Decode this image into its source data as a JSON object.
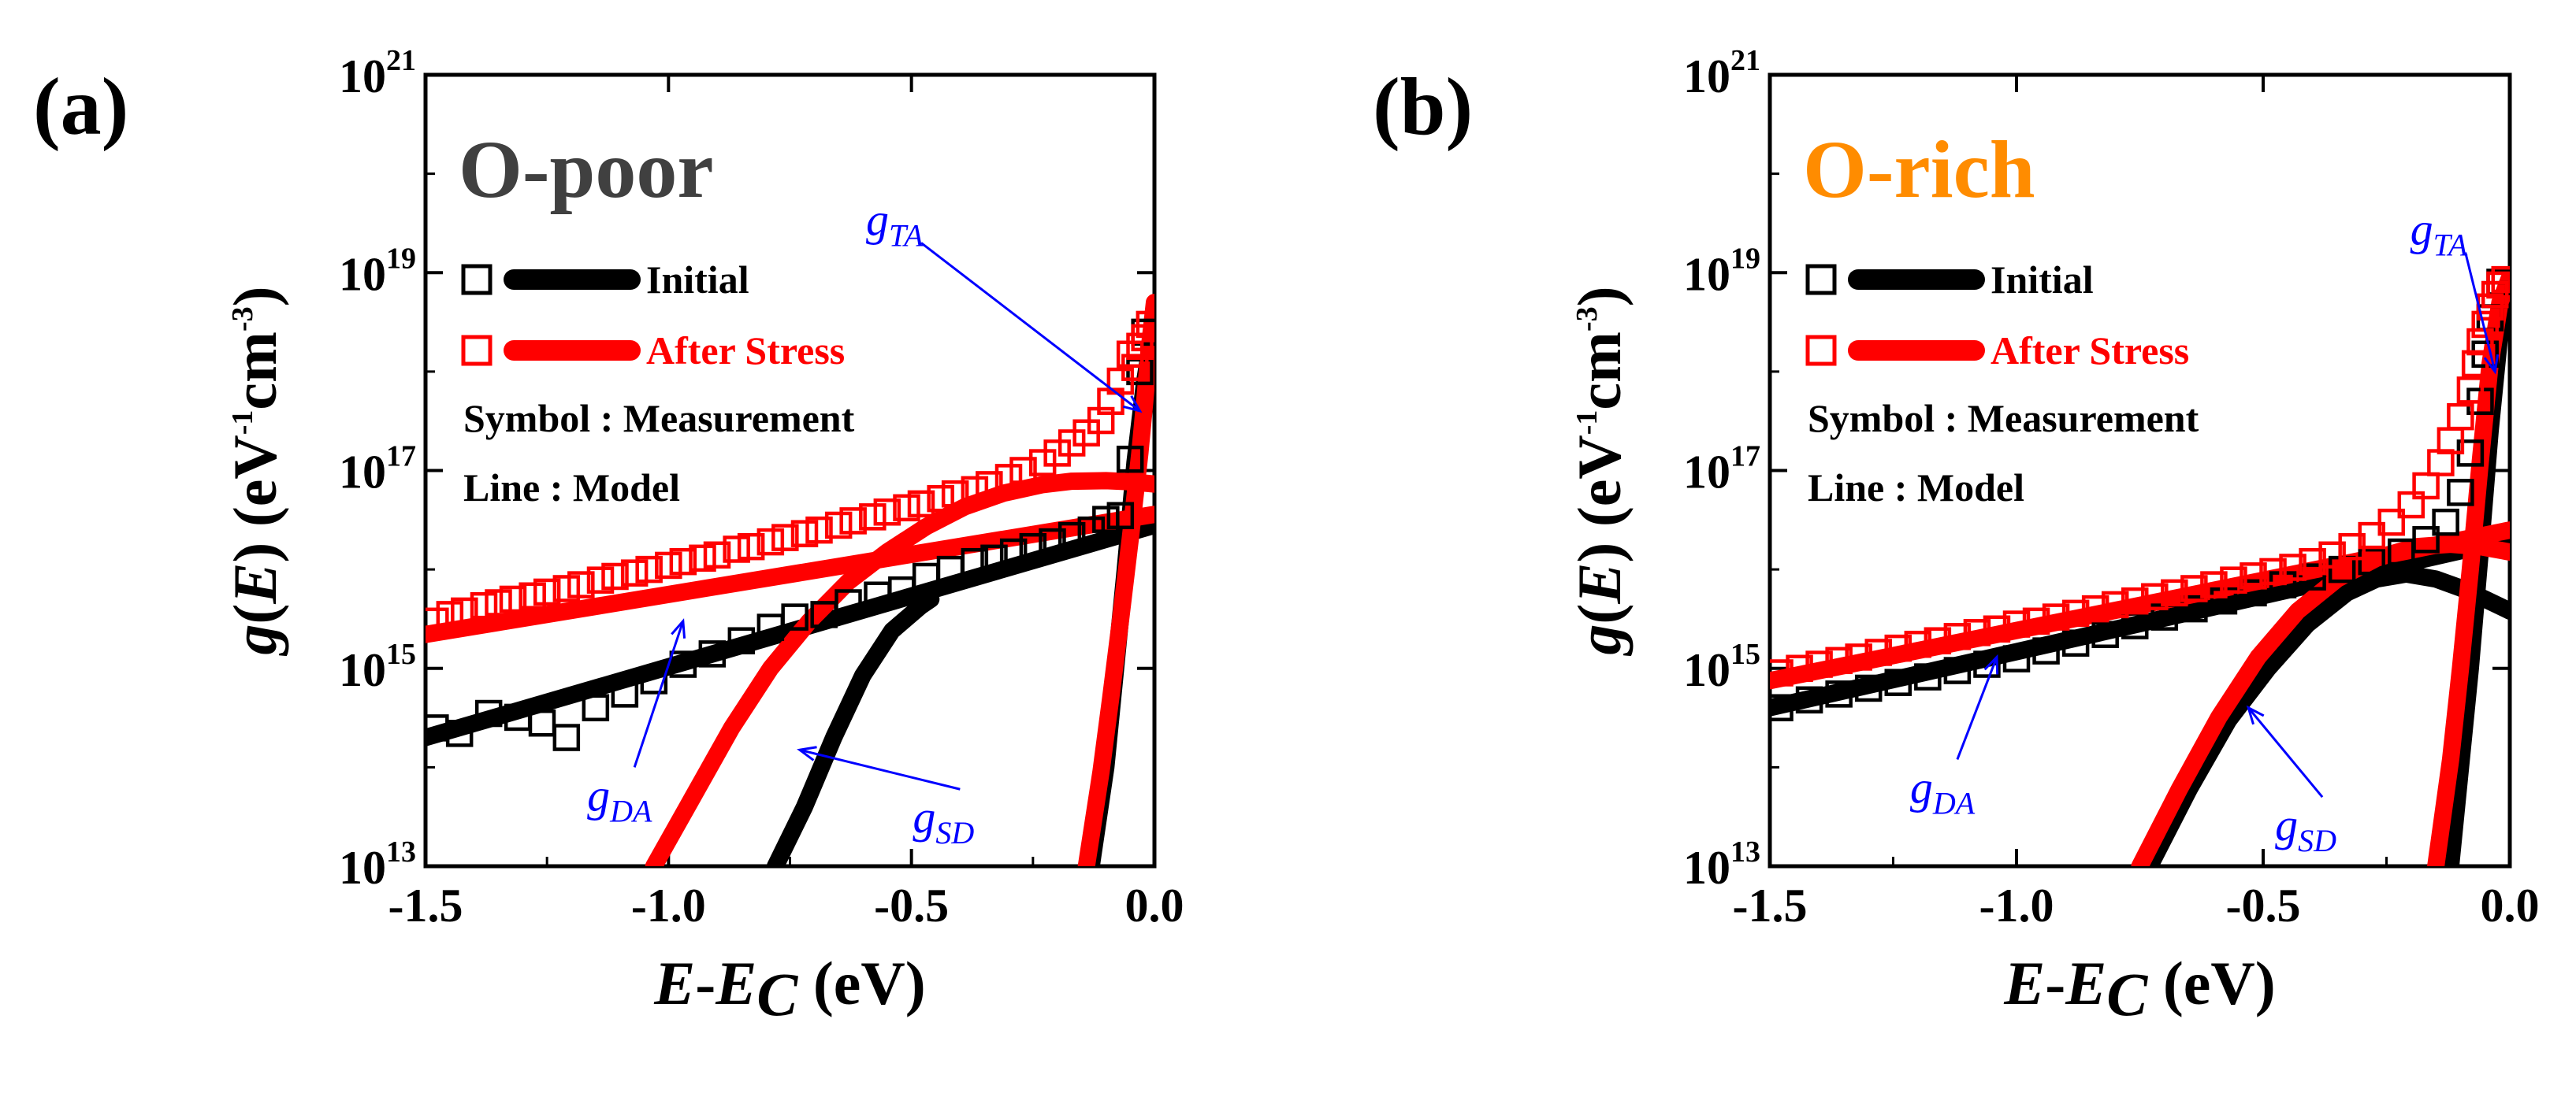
{
  "chart_data": [
    {
      "panel_label": "(a)",
      "sample_label": "O-poor",
      "sample_color": "#404040",
      "type": "scatter",
      "xlabel": "E-E_C (eV)",
      "ylabel": "g(E) (eV^-1cm^-3)",
      "xlim": [
        -1.5,
        0.0
      ],
      "ylim": [
        10000000000000.0,
        1e+21
      ],
      "yscale": "log",
      "x_ticks": [
        "-1.5",
        "-1.0",
        "-0.5",
        "0.0"
      ],
      "y_ticks": [
        "10^13",
        "10^15",
        "10^17",
        "10^19",
        "10^21"
      ],
      "legend": {
        "placement": "upper-left",
        "entries": [
          {
            "label": "Initial",
            "color": "#000000"
          },
          {
            "label": "After Stress",
            "color": "#ff0000"
          }
        ]
      },
      "notes": [
        "Symbol : Measurement",
        "Line : Model"
      ],
      "annotations": [
        {
          "base": "g",
          "sub": "TA",
          "from": [
            -0.48,
            2e+19
          ],
          "to": [
            -0.03,
            4e+17
          ]
        },
        {
          "base": "g",
          "sub": "DA",
          "from": [
            -1.07,
            100000000000000.0
          ],
          "to": [
            -0.97,
            3000000000000000.0
          ]
        },
        {
          "base": "g",
          "sub": "SD",
          "from": [
            -0.4,
            60000000000000.0
          ],
          "to": [
            -0.73,
            150000000000000.0
          ]
        }
      ],
      "series": [
        {
          "name": "Initial",
          "kind": "measurement",
          "color": "#000000",
          "x": [
            -1.48,
            -1.43,
            -1.37,
            -1.31,
            -1.26,
            -1.21,
            -1.15,
            -1.09,
            -1.03,
            -0.97,
            -0.91,
            -0.85,
            -0.79,
            -0.74,
            -0.68,
            -0.63,
            -0.57,
            -0.52,
            -0.47,
            -0.42,
            -0.37,
            -0.33,
            -0.29,
            -0.25,
            -0.21,
            -0.17,
            -0.13,
            -0.1,
            -0.07,
            -0.05,
            -0.03,
            -0.02
          ],
          "y": [
            250000000000000.0,
            220000000000000.0,
            350000000000000.0,
            320000000000000.0,
            280000000000000.0,
            200000000000000.0,
            400000000000000.0,
            550000000000000.0,
            750000000000000.0,
            1100000000000000.0,
            1400000000000000.0,
            1900000000000000.0,
            2600000000000000.0,
            3300000000000000.0,
            3500000000000000.0,
            4600000000000000.0,
            5500000000000000.0,
            6200000000000000.0,
            8500000000000000.0,
            1e+16,
            1.2e+16,
            1.3e+16,
            1.5e+16,
            1.7e+16,
            1.9e+16,
            2.2e+16,
            2.5e+16,
            3.2e+16,
            3.5e+16,
            1.3e+17,
            1e+18,
            2.5e+18
          ]
        },
        {
          "name": "After Stress",
          "kind": "measurement",
          "color": "#ff0000",
          "x": [
            -1.48,
            -1.45,
            -1.42,
            -1.38,
            -1.35,
            -1.32,
            -1.28,
            -1.25,
            -1.21,
            -1.18,
            -1.14,
            -1.11,
            -1.07,
            -1.04,
            -1.0,
            -0.97,
            -0.93,
            -0.9,
            -0.86,
            -0.83,
            -0.79,
            -0.76,
            -0.72,
            -0.69,
            -0.65,
            -0.62,
            -0.58,
            -0.55,
            -0.51,
            -0.48,
            -0.44,
            -0.41,
            -0.37,
            -0.34,
            -0.3,
            -0.27,
            -0.23,
            -0.2,
            -0.17,
            -0.14,
            -0.11,
            -0.09,
            -0.07,
            -0.05,
            -0.04,
            -0.03,
            -0.02,
            -0.01
          ],
          "y": [
            3000000000000000.0,
            3500000000000000.0,
            3800000000000000.0,
            4300000000000000.0,
            4600000000000000.0,
            5000000000000000.0,
            5400000000000000.0,
            5900000000000000.0,
            6400000000000000.0,
            7000000000000000.0,
            7800000000000000.0,
            8500000000000000.0,
            9200000000000000.0,
            1e+16,
            1.1e+16,
            1.2e+16,
            1.3e+16,
            1.4e+16,
            1.6e+16,
            1.7e+16,
            1.9e+16,
            2.1e+16,
            2.3e+16,
            2.5e+16,
            2.8e+16,
            3.1e+16,
            3.4e+16,
            3.8e+16,
            4.2e+16,
            4.6e+16,
            5.2e+16,
            5.8e+16,
            6.4e+16,
            7.2e+16,
            8.5e+16,
            1e+17,
            1.2e+17,
            1.5e+17,
            1.9e+17,
            2.4e+17,
            3.2e+17,
            5e+17,
            8e+17,
            1.5e+18,
            1.1e+18,
            1.8e+18,
            2.2e+18,
            3e+18
          ]
        },
        {
          "name": "Initial g_DA model",
          "kind": "model",
          "color": "#000000",
          "x": [
            -1.5,
            -0.0
          ],
          "y": [
            200000000000000.0,
            2.8e+16
          ]
        },
        {
          "name": "Initial g_SD model",
          "kind": "model",
          "color": "#000000",
          "x": [
            -0.78,
            -0.72,
            -0.66,
            -0.6,
            -0.54,
            -0.48,
            -0.46
          ],
          "y": [
            10000000000000.0,
            40000000000000.0,
            200000000000000.0,
            850000000000000.0,
            2400000000000000.0,
            4300000000000000.0,
            5000000000000000.0
          ]
        },
        {
          "name": "Initial g_TA model",
          "kind": "model",
          "color": "#000000",
          "x": [
            -0.13,
            -0.1,
            -0.08,
            -0.06,
            -0.04,
            -0.02,
            -0.01,
            0.0
          ],
          "y": [
            10000000000000.0,
            100000000000000.0,
            1000000000000000.0,
            1e+16,
            1.2e+17,
            8e+17,
            1.6e+18,
            2.2e+18
          ]
        },
        {
          "name": "After Stress g_DA model",
          "kind": "model",
          "color": "#ff0000",
          "x": [
            -1.5,
            -0.0
          ],
          "y": [
            2200000000000000.0,
            3.6e+16
          ]
        },
        {
          "name": "After Stress g_SD model",
          "kind": "model",
          "color": "#ff0000",
          "x": [
            -1.03,
            -0.95,
            -0.87,
            -0.79,
            -0.71,
            -0.63,
            -0.55,
            -0.47,
            -0.39,
            -0.31,
            -0.23,
            -0.17,
            -0.1,
            -0.05,
            0.0
          ],
          "y": [
            10000000000000.0,
            50000000000000.0,
            250000000000000.0,
            1000000000000000.0,
            3000000000000000.0,
            7500000000000000.0,
            1.5e+16,
            2.7e+16,
            4.3e+16,
            5.9e+16,
            7.2e+16,
            7.8e+16,
            7.9e+16,
            7.7e+16,
            7.3e+16
          ]
        },
        {
          "name": "After Stress g_TA model",
          "kind": "model",
          "color": "#ff0000",
          "x": [
            -0.14,
            -0.11,
            -0.09,
            -0.07,
            -0.05,
            -0.03,
            -0.02,
            -0.01,
            0.0
          ],
          "y": [
            10000000000000.0,
            90000000000000.0,
            500000000000000.0,
            3000000000000000.0,
            2e+16,
            1.5e+17,
            5e+17,
            1.8e+18,
            5e+18
          ]
        }
      ]
    },
    {
      "panel_label": "(b)",
      "sample_label": "O-rich",
      "sample_color": "#ff8c00",
      "type": "scatter",
      "xlabel": "E-E_C (eV)",
      "ylabel": "g(E) (eV^-1cm^-3)",
      "xlim": [
        -1.5,
        0.0
      ],
      "ylim": [
        10000000000000.0,
        1e+21
      ],
      "yscale": "log",
      "x_ticks": [
        "-1.5",
        "-1.0",
        "-0.5",
        "0.0"
      ],
      "y_ticks": [
        "10^13",
        "10^15",
        "10^17",
        "10^19",
        "10^21"
      ],
      "legend": {
        "placement": "upper-left",
        "entries": [
          {
            "label": "Initial",
            "color": "#000000"
          },
          {
            "label": "After Stress",
            "color": "#ff0000"
          }
        ]
      },
      "notes": [
        "Symbol : Measurement",
        "Line : Model"
      ],
      "annotations": [
        {
          "base": "g",
          "sub": "TA",
          "from": [
            -0.09,
            1.6e+19
          ],
          "to": [
            -0.03,
            1e+18
          ]
        },
        {
          "base": "g",
          "sub": "DA",
          "from": [
            -1.12,
            120000000000000.0
          ],
          "to": [
            -1.04,
            1300000000000000.0
          ]
        },
        {
          "base": "g",
          "sub": "SD",
          "from": [
            -0.38,
            50000000000000.0
          ],
          "to": [
            -0.53,
            400000000000000.0
          ]
        }
      ],
      "series": [
        {
          "name": "Initial",
          "kind": "measurement",
          "color": "#000000",
          "x": [
            -1.48,
            -1.42,
            -1.36,
            -1.3,
            -1.24,
            -1.18,
            -1.12,
            -1.06,
            -1.0,
            -0.94,
            -0.88,
            -0.82,
            -0.76,
            -0.7,
            -0.64,
            -0.58,
            -0.52,
            -0.46,
            -0.4,
            -0.34,
            -0.28,
            -0.22,
            -0.17,
            -0.13,
            -0.1,
            -0.08,
            -0.06,
            -0.05,
            -0.04,
            -0.03,
            -0.02
          ],
          "y": [
            400000000000000.0,
            480000000000000.0,
            550000000000000.0,
            630000000000000.0,
            720000000000000.0,
            820000000000000.0,
            950000000000000.0,
            1100000000000000.0,
            1250000000000000.0,
            1500000000000000.0,
            1800000000000000.0,
            2200000000000000.0,
            2700000000000000.0,
            3300000000000000.0,
            4000000000000000.0,
            4800000000000000.0,
            5800000000000000.0,
            7000000000000000.0,
            8400000000000000.0,
            1e+16,
            1.2e+16,
            1.5e+16,
            2e+16,
            3e+16,
            6e+16,
            1.5e+17,
            5e+17,
            1.5e+18,
            3.5e+18,
            6e+18,
            8e+18
          ]
        },
        {
          "name": "After Stress",
          "kind": "measurement",
          "color": "#ff0000",
          "x": [
            -1.48,
            -1.44,
            -1.4,
            -1.36,
            -1.32,
            -1.28,
            -1.24,
            -1.2,
            -1.16,
            -1.12,
            -1.08,
            -1.04,
            -1.0,
            -0.96,
            -0.92,
            -0.88,
            -0.84,
            -0.8,
            -0.76,
            -0.72,
            -0.68,
            -0.64,
            -0.6,
            -0.56,
            -0.52,
            -0.48,
            -0.44,
            -0.4,
            -0.36,
            -0.32,
            -0.28,
            -0.24,
            -0.2,
            -0.17,
            -0.14,
            -0.12,
            -0.1,
            -0.08,
            -0.07,
            -0.06,
            -0.05,
            -0.04,
            -0.03,
            -0.02,
            -0.01
          ],
          "y": [
            900000000000000.0,
            1000000000000000.0,
            1100000000000000.0,
            1200000000000000.0,
            1300000000000000.0,
            1450000000000000.0,
            1600000000000000.0,
            1750000000000000.0,
            1900000000000000.0,
            2100000000000000.0,
            2300000000000000.0,
            2500000000000000.0,
            2800000000000000.0,
            3000000000000000.0,
            3300000000000000.0,
            3600000000000000.0,
            4000000000000000.0,
            4400000000000000.0,
            4800000000000000.0,
            5300000000000000.0,
            5800000000000000.0,
            6400000000000000.0,
            7000000000000000.0,
            7800000000000000.0,
            8600000000000000.0,
            9500000000000000.0,
            1.05e+16,
            1.2e+16,
            1.4e+16,
            1.7e+16,
            2.2e+16,
            3e+16,
            4.5e+16,
            7e+16,
            1.2e+17,
            2e+17,
            3.5e+17,
            6.5e+17,
            1.2e+18,
            2e+18,
            3e+18,
            4.5e+18,
            6e+18,
            7.5e+18,
            8.5e+18
          ]
        },
        {
          "name": "Initial g_DA model",
          "kind": "model",
          "color": "#000000",
          "x": [
            -1.5,
            0.0
          ],
          "y": [
            400000000000000.0,
            2e+16
          ]
        },
        {
          "name": "Initial g_SD model",
          "kind": "model",
          "color": "#000000",
          "x": [
            -0.73,
            -0.65,
            -0.57,
            -0.49,
            -0.41,
            -0.33,
            -0.27,
            -0.21,
            -0.15,
            -0.1,
            -0.05,
            0.0
          ],
          "y": [
            10000000000000.0,
            60000000000000.0,
            300000000000000.0,
            1000000000000000.0,
            2800000000000000.0,
            5800000000000000.0,
            8000000000000000.0,
            9000000000000000.0,
            8000000000000000.0,
            6500000000000000.0,
            5000000000000000.0,
            3800000000000000.0
          ]
        },
        {
          "name": "Initial g_TA model",
          "kind": "model",
          "color": "#000000",
          "x": [
            -0.12,
            -0.1,
            -0.08,
            -0.06,
            -0.04,
            -0.02,
            0.0
          ],
          "y": [
            10000000000000.0,
            100000000000000.0,
            1000000000000000.0,
            1.5e+16,
            2.5e+17,
            2.5e+18,
            8e+18
          ]
        },
        {
          "name": "After Stress g_DA model",
          "kind": "model",
          "color": "#ff0000",
          "x": [
            -1.5,
            0.0
          ],
          "y": [
            750000000000000.0,
            2.5e+16
          ]
        },
        {
          "name": "After Stress g_SD model",
          "kind": "model",
          "color": "#ff0000",
          "x": [
            -0.75,
            -0.67,
            -0.59,
            -0.51,
            -0.43,
            -0.35,
            -0.27,
            -0.19,
            -0.12,
            -0.06,
            0.0
          ],
          "y": [
            10000000000000.0,
            60000000000000.0,
            320000000000000.0,
            1300000000000000.0,
            3800000000000000.0,
            8000000000000000.0,
            1.3e+16,
            1.7e+16,
            1.8e+16,
            1.7e+16,
            1.5e+16
          ]
        },
        {
          "name": "After Stress g_TA model",
          "kind": "model",
          "color": "#ff0000",
          "x": [
            -0.15,
            -0.12,
            -0.1,
            -0.08,
            -0.06,
            -0.04,
            -0.02,
            0.0
          ],
          "y": [
            10000000000000.0,
            120000000000000.0,
            1000000000000000.0,
            1e+16,
            1.2e+17,
            1.2e+18,
            5e+18,
            9e+18
          ]
        }
      ]
    }
  ]
}
